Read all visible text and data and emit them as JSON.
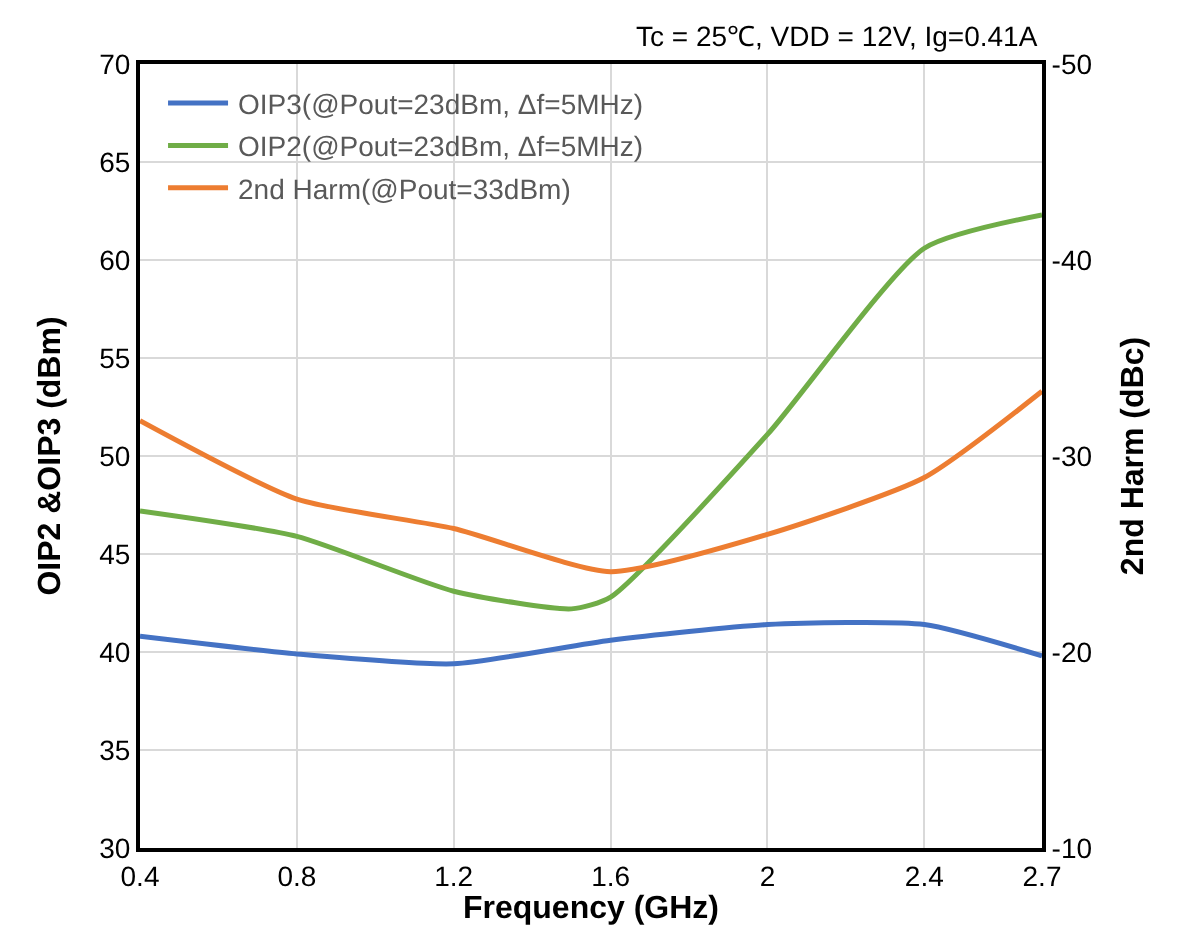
{
  "chart_data": {
    "type": "line",
    "annotations": [
      "Tc = 25℃, VDD = 12V, Ig=0.41A"
    ],
    "xlabel": "Frequency (GHz)",
    "ylabel": "OIP2 &OIP3 (dBm)",
    "y2label": "2nd Harm (dBc)",
    "xlim": [
      0.4,
      2.7
    ],
    "xticks": [
      0.4,
      0.8,
      1.2,
      1.6,
      2,
      2.4,
      2.7
    ],
    "ylim": [
      30,
      70
    ],
    "yticks": [
      30,
      35,
      40,
      45,
      50,
      55,
      60,
      65,
      70
    ],
    "y2lim": [
      -10,
      -50
    ],
    "y2ticks": [
      -10,
      -20,
      -30,
      -40,
      -50
    ],
    "grid": true,
    "legend": "top left",
    "marker": "none",
    "line_style": "solid",
    "series": [
      {
        "name": "OIP3(@Pout=23dBm, Δf=5MHz)",
        "color": "#4472c4",
        "x": [
          0.4,
          0.8,
          1.2,
          1.6,
          2,
          2.4,
          2.7
        ],
        "values": [
          40.8,
          39.9,
          39.4,
          40.6,
          41.4,
          41.4,
          39.8
        ]
      },
      {
        "name": "OIP2(@Pout=23dBm, Δf=5MHz)",
        "color": "#70ad47",
        "x": [
          0.4,
          0.8,
          1.2,
          1.5,
          1.6,
          2,
          2.4,
          2.7
        ],
        "values": [
          47.2,
          45.9,
          43.1,
          42.2,
          42.8,
          51.1,
          60.6,
          62.3
        ]
      },
      {
        "name": "2nd Harm(@Pout=33dBm)",
        "color": "#ed7d31",
        "axis": "y2",
        "x": [
          0.4,
          0.8,
          1.2,
          1.6,
          2,
          2.4,
          2.7
        ],
        "values": [
          -31.8,
          -27.8,
          -26.3,
          -24.1,
          -26.0,
          -28.9,
          -33.3
        ]
      }
    ]
  }
}
